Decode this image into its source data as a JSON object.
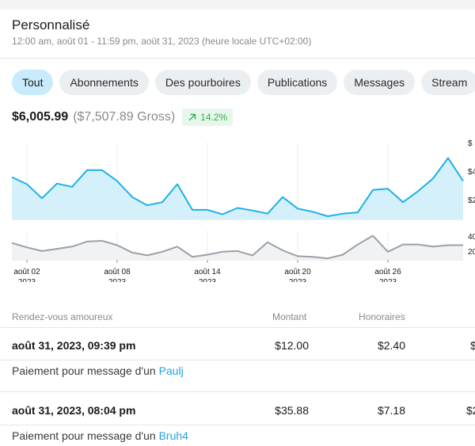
{
  "header": {
    "title": "Personnalisé",
    "subtitle": "12:00 am, août 01 - 11:59 pm, août 31, 2023 (heure locale UTC+02:00)"
  },
  "tabs": [
    {
      "label": "Tout",
      "active": true
    },
    {
      "label": "Abonnements"
    },
    {
      "label": "Des pourboires"
    },
    {
      "label": "Publications"
    },
    {
      "label": "Messages"
    },
    {
      "label": "Stream"
    }
  ],
  "summary": {
    "net": "$6,005.99",
    "gross": "($7,507.89 Gross)",
    "change": "14.2%",
    "change_icon": "arrow-up-right-icon"
  },
  "colors": {
    "accent": "#1fb0e8",
    "area_fill": "#d4f0fb",
    "secondary_line": "#9aa1a8",
    "link": "#1fa3e0",
    "positive": "#2eb24f"
  },
  "chart_data": [
    {
      "type": "area",
      "x": [
        "août 01",
        "août 02",
        "août 03",
        "août 04",
        "août 05",
        "août 06",
        "août 07",
        "août 08",
        "août 09",
        "août 10",
        "août 11",
        "août 12",
        "août 13",
        "août 14",
        "août 15",
        "août 16",
        "août 17",
        "août 18",
        "août 19",
        "août 20",
        "août 21",
        "août 22",
        "août 23",
        "août 24",
        "août 25",
        "août 26",
        "août 27",
        "août 28",
        "août 29",
        "août 30",
        "août 31"
      ],
      "series": [
        {
          "values": [
            330,
            275,
            165,
            280,
            255,
            385,
            385,
            300,
            175,
            110,
            135,
            275,
            75,
            75,
            40,
            90,
            70,
            45,
            175,
            85,
            60,
            25,
            45,
            55,
            230,
            240,
            135,
            220,
            320,
            480,
            300
          ]
        }
      ],
      "y_tick_labels": [
        "$",
        "$4",
        "$2"
      ],
      "ylim": [
        0,
        600
      ],
      "grid": "vertical"
    },
    {
      "type": "line",
      "x": [
        "août 01",
        "août 02",
        "août 03",
        "août 04",
        "août 05",
        "août 06",
        "août 07",
        "août 08",
        "août 09",
        "août 10",
        "août 11",
        "août 12",
        "août 13",
        "août 14",
        "août 15",
        "août 16",
        "août 17",
        "août 18",
        "août 19",
        "août 20",
        "août 21",
        "août 22",
        "août 23",
        "août 24",
        "août 25",
        "août 26",
        "août 27",
        "août 28",
        "août 29",
        "août 30",
        "août 31"
      ],
      "series": [
        {
          "values": [
            23,
            17,
            12,
            15,
            18,
            25,
            26,
            20,
            10,
            6,
            11,
            18,
            4,
            7,
            11,
            12,
            6,
            24,
            13,
            5,
            4,
            2,
            7,
            21,
            33,
            11,
            21,
            21,
            18,
            20,
            20
          ]
        }
      ],
      "y_tick_labels": [
        "40",
        "20"
      ],
      "ylim": [
        0,
        40
      ],
      "x_tick_labels": [
        {
          "day": "août 02",
          "year": "2023"
        },
        {
          "day": "août 08",
          "year": "2023"
        },
        {
          "day": "août 14",
          "year": "2023"
        },
        {
          "day": "août 20",
          "year": "2023"
        },
        {
          "day": "août 26",
          "year": "2023"
        }
      ]
    }
  ],
  "table": {
    "headers": {
      "date": "Rendez-vous amoureux",
      "amount": "Montant",
      "fee": "Honoraires"
    },
    "rows": [
      {
        "date": "août 31, 2023, 09:39 pm",
        "amount": "$12.00",
        "fee": "$2.40",
        "clipped": "$",
        "desc_prefix": "Paiement pour message d'un ",
        "user": "Paulj"
      },
      {
        "date": "août 31, 2023, 08:04 pm",
        "amount": "$35.88",
        "fee": "$7.18",
        "clipped": "$2",
        "desc_prefix": "Paiement pour message d'un ",
        "user": "Bruh4"
      }
    ]
  }
}
